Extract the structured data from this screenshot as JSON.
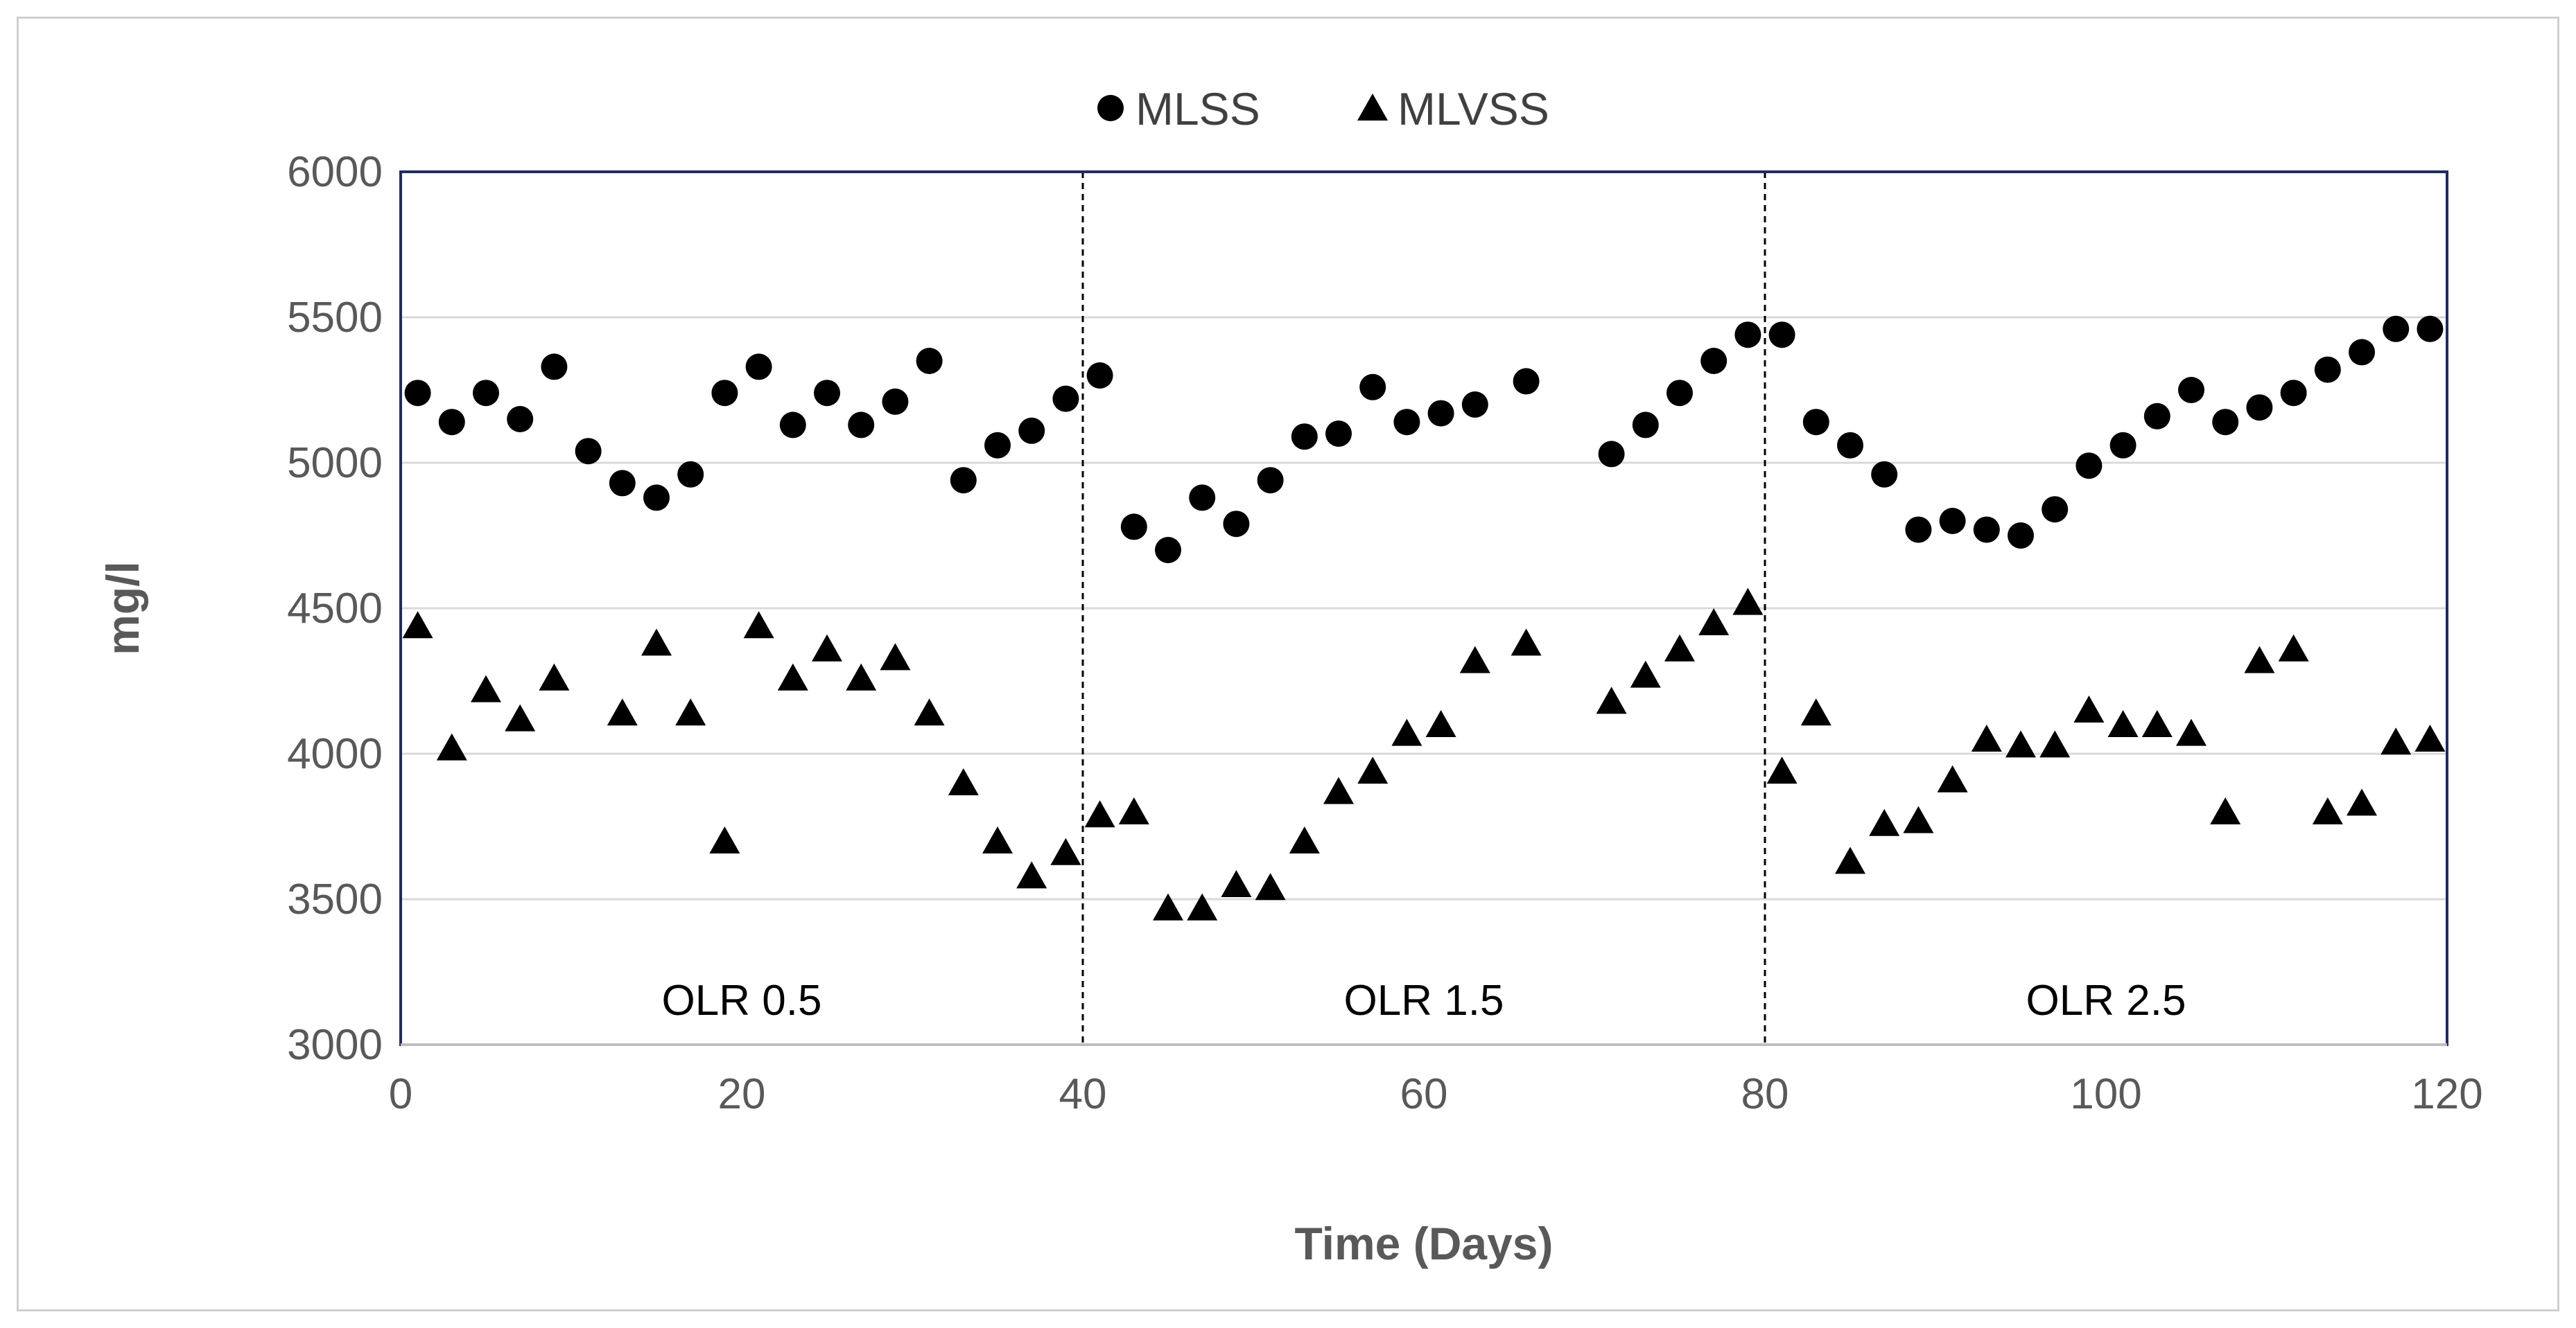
{
  "chart_data": {
    "type": "scatter",
    "title": "",
    "xlabel": "Time (Days)",
    "ylabel": "mg/l",
    "xlim": [
      0,
      120
    ],
    "ylim": [
      3000,
      6000
    ],
    "xticks": [
      0,
      20,
      40,
      60,
      80,
      100,
      120
    ],
    "yticks": [
      3000,
      3500,
      4000,
      4500,
      5000,
      5500,
      6000
    ],
    "legend_position": "top-center",
    "grid": "horizontal",
    "dividers": [
      40,
      80
    ],
    "regions": [
      {
        "label": "OLR 0.5",
        "x": 20,
        "y": 3150
      },
      {
        "label": "OLR 1.5",
        "x": 60,
        "y": 3150
      },
      {
        "label": "OLR 2.5",
        "x": 100,
        "y": 3150
      }
    ],
    "series": [
      {
        "name": "MLSS",
        "marker": "circle",
        "points": [
          [
            1,
            5240
          ],
          [
            3,
            5140
          ],
          [
            5,
            5240
          ],
          [
            7,
            5150
          ],
          [
            9,
            5330
          ],
          [
            11,
            5040
          ],
          [
            13,
            4930
          ],
          [
            15,
            4880
          ],
          [
            17,
            4960
          ],
          [
            19,
            5240
          ],
          [
            21,
            5330
          ],
          [
            23,
            5130
          ],
          [
            25,
            5240
          ],
          [
            27,
            5130
          ],
          [
            29,
            5210
          ],
          [
            31,
            5350
          ],
          [
            33,
            4940
          ],
          [
            35,
            5060
          ],
          [
            37,
            5110
          ],
          [
            39,
            5220
          ],
          [
            41,
            5300
          ],
          [
            43,
            4780
          ],
          [
            45,
            4700
          ],
          [
            47,
            4880
          ],
          [
            49,
            4790
          ],
          [
            51,
            4940
          ],
          [
            53,
            5090
          ],
          [
            55,
            5100
          ],
          [
            57,
            5260
          ],
          [
            59,
            5140
          ],
          [
            61,
            5170
          ],
          [
            63,
            5200
          ],
          [
            66,
            5280
          ],
          [
            71,
            5030
          ],
          [
            73,
            5130
          ],
          [
            75,
            5240
          ],
          [
            77,
            5350
          ],
          [
            79,
            5440
          ],
          [
            81,
            5440
          ],
          [
            83,
            5140
          ],
          [
            85,
            5060
          ],
          [
            87,
            4960
          ],
          [
            89,
            4770
          ],
          [
            91,
            4800
          ],
          [
            93,
            4770
          ],
          [
            95,
            4750
          ],
          [
            97,
            4840
          ],
          [
            99,
            4990
          ],
          [
            101,
            5060
          ],
          [
            103,
            5160
          ],
          [
            105,
            5250
          ],
          [
            107,
            5140
          ],
          [
            109,
            5190
          ],
          [
            111,
            5240
          ],
          [
            113,
            5320
          ],
          [
            115,
            5380
          ],
          [
            117,
            5460
          ],
          [
            119,
            5460
          ]
        ]
      },
      {
        "name": "MLVSS",
        "marker": "triangle",
        "points": [
          [
            1,
            4440
          ],
          [
            3,
            4020
          ],
          [
            5,
            4220
          ],
          [
            7,
            4120
          ],
          [
            9,
            4260
          ],
          [
            13,
            4140
          ],
          [
            15,
            4380
          ],
          [
            17,
            4140
          ],
          [
            19,
            3700
          ],
          [
            21,
            4440
          ],
          [
            23,
            4260
          ],
          [
            25,
            4360
          ],
          [
            27,
            4260
          ],
          [
            29,
            4330
          ],
          [
            31,
            4140
          ],
          [
            33,
            3900
          ],
          [
            35,
            3700
          ],
          [
            37,
            3580
          ],
          [
            39,
            3660
          ],
          [
            41,
            3790
          ],
          [
            43,
            3800
          ],
          [
            45,
            3470
          ],
          [
            47,
            3470
          ],
          [
            49,
            3550
          ],
          [
            51,
            3540
          ],
          [
            53,
            3700
          ],
          [
            55,
            3870
          ],
          [
            57,
            3940
          ],
          [
            59,
            4070
          ],
          [
            61,
            4100
          ],
          [
            63,
            4320
          ],
          [
            66,
            4380
          ],
          [
            71,
            4180
          ],
          [
            73,
            4270
          ],
          [
            75,
            4360
          ],
          [
            77,
            4450
          ],
          [
            79,
            4520
          ],
          [
            81,
            3940
          ],
          [
            83,
            4140
          ],
          [
            85,
            3630
          ],
          [
            87,
            3760
          ],
          [
            89,
            3770
          ],
          [
            91,
            3910
          ],
          [
            93,
            4050
          ],
          [
            95,
            4030
          ],
          [
            97,
            4030
          ],
          [
            99,
            4150
          ],
          [
            101,
            4100
          ],
          [
            103,
            4100
          ],
          [
            105,
            4070
          ],
          [
            107,
            3800
          ],
          [
            109,
            4320
          ],
          [
            111,
            4360
          ],
          [
            113,
            3800
          ],
          [
            115,
            3830
          ],
          [
            117,
            4040
          ],
          [
            119,
            4050
          ]
        ]
      }
    ]
  }
}
